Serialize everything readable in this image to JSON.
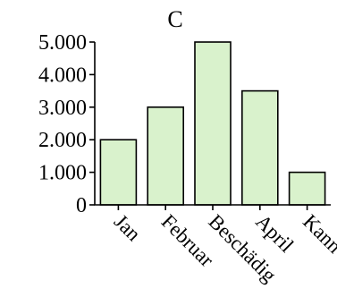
{
  "chart_data": {
    "type": "bar",
    "title": "C",
    "xlabel": "",
    "ylabel": "",
    "categories": [
      "Jan",
      "Februar",
      "Beschädig",
      "April",
      "Kann"
    ],
    "values": [
      2000,
      3000,
      5000,
      3500,
      1000
    ],
    "ylim": [
      0,
      5000
    ],
    "yticks": [
      0,
      1000,
      2000,
      3000,
      4000,
      5000
    ],
    "ytick_labels": [
      "0",
      "1.000",
      "2.000",
      "3.000",
      "4.000",
      "5.000"
    ],
    "grid": false,
    "legend": "none",
    "bar_color": "#d9f2cc",
    "bar_edge_color": "#000000"
  }
}
